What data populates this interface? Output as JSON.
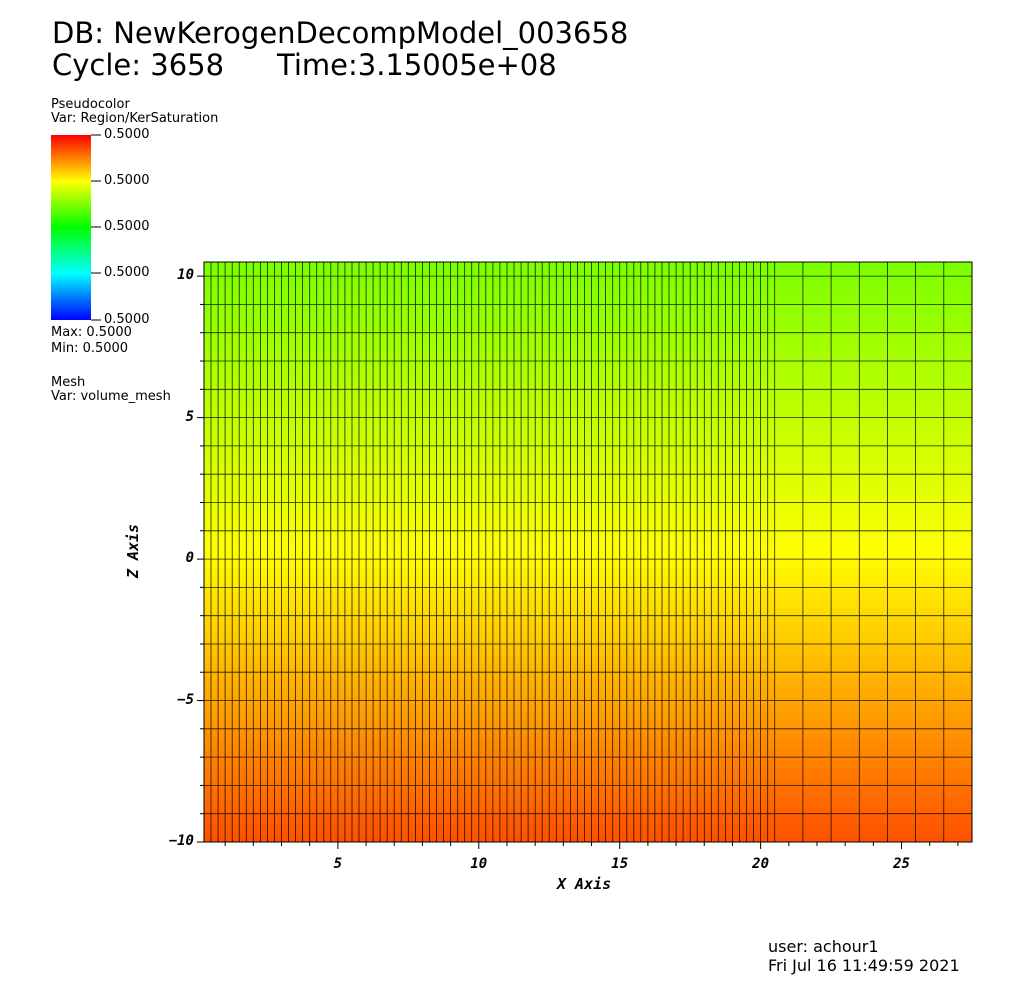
{
  "header": {
    "db_line": "DB: NewKerogenDecompModel_003658",
    "cycle_label": "Cycle: 3658",
    "time_label": "Time:3.15005e+08"
  },
  "legend": {
    "plot_type": "Pseudocolor",
    "var": "Var: Region/KerSaturation",
    "tick_labels": [
      "0.5000",
      "0.5000",
      "0.5000",
      "0.5000",
      "0.5000"
    ],
    "max": "Max:  0.5000",
    "min": "Min:  0.5000",
    "colormap": [
      "#0000ff",
      "#00ffff",
      "#00ff00",
      "#ffff00",
      "#ff0000"
    ]
  },
  "mesh_legend": {
    "plot_type": "Mesh",
    "var": "Var: volume_mesh"
  },
  "footer": {
    "user": "user: achour1",
    "date": "Fri Jul 16 11:49:59 2021"
  },
  "chart_data": {
    "type": "heatmap",
    "xlabel": "X Axis",
    "ylabel": "Z Axis",
    "xlim": [
      0.25,
      27.5
    ],
    "ylim": [
      -10,
      10.5
    ],
    "x_ticks": [
      5,
      10,
      15,
      20,
      25
    ],
    "y_ticks": [
      -10,
      -5,
      0,
      5,
      10
    ],
    "x_tick_labels": [
      "5",
      "10",
      "15",
      "20",
      "25"
    ],
    "y_tick_labels": [
      "−10",
      "−5",
      "0",
      "5",
      "10"
    ],
    "fine_mesh_x_range": [
      0.25,
      20.5
    ],
    "fine_mesh_dx": 0.25,
    "coarse_mesh_x_range": [
      20.5,
      27.5
    ],
    "coarse_mesh_dx": 1.0,
    "mesh_dz": 1.0,
    "field_color_top": "#7bff00",
    "field_color_mid": "#ffff00",
    "field_color_bottom": "#ff5000"
  }
}
